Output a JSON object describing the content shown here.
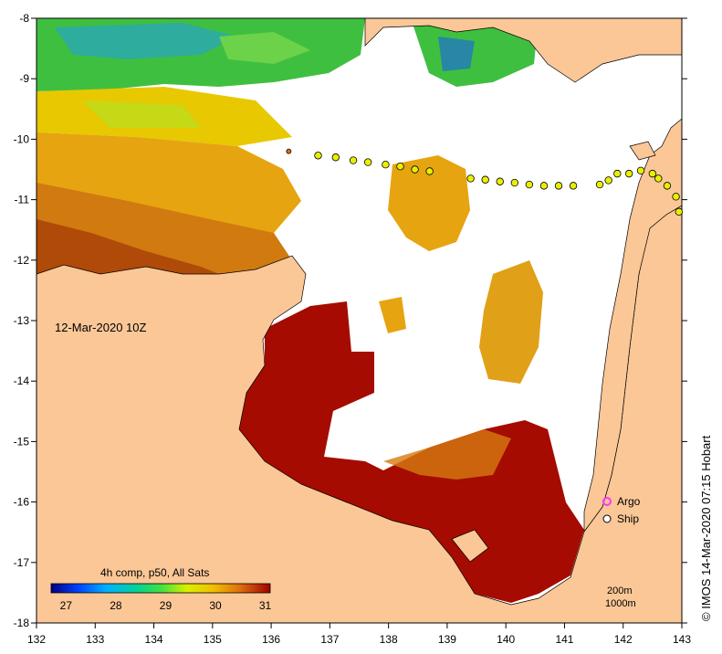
{
  "map": {
    "date_label": "12-Mar-2020 10Z",
    "credit": "© IMOS 14-Mar-2020 07:15 Hobart",
    "lon_ticks": [
      "132",
      "133",
      "134",
      "135",
      "136",
      "137",
      "138",
      "139",
      "140",
      "141",
      "142",
      "143"
    ],
    "lat_ticks": [
      "-8",
      "-9",
      "-10",
      "-11",
      "-12",
      "-13",
      "-14",
      "-15",
      "-16",
      "-17",
      "-18"
    ],
    "lon_range": [
      132,
      143
    ],
    "lat_range": [
      -18,
      -8
    ],
    "colorbar": {
      "title": "4h comp, p50, All Sats",
      "ticks": [
        "27",
        "28",
        "29",
        "30",
        "31"
      ],
      "range": [
        26.7,
        31.1
      ]
    },
    "legend": {
      "argo_label": "Argo",
      "ship_label": "Ship"
    },
    "depth_labels": [
      "200m",
      "1000m"
    ],
    "ship_track": [
      [
        136.3,
        -10.2
      ],
      [
        136.8,
        -10.27
      ],
      [
        137.1,
        -10.3
      ],
      [
        137.4,
        -10.35
      ],
      [
        137.65,
        -10.38
      ],
      [
        137.95,
        -10.42
      ],
      [
        138.2,
        -10.45
      ],
      [
        138.45,
        -10.5
      ],
      [
        138.7,
        -10.53
      ],
      [
        139.4,
        -10.65
      ],
      [
        139.65,
        -10.67
      ],
      [
        139.9,
        -10.7
      ],
      [
        140.15,
        -10.72
      ],
      [
        140.4,
        -10.75
      ],
      [
        140.65,
        -10.77
      ],
      [
        140.9,
        -10.77
      ],
      [
        141.15,
        -10.77
      ],
      [
        141.6,
        -10.75
      ],
      [
        141.75,
        -10.68
      ],
      [
        141.9,
        -10.57
      ],
      [
        142.1,
        -10.57
      ],
      [
        142.3,
        -10.52
      ],
      [
        142.5,
        -10.57
      ],
      [
        142.6,
        -10.65
      ],
      [
        142.75,
        -10.77
      ],
      [
        142.9,
        -10.95
      ],
      [
        142.95,
        -11.2
      ]
    ],
    "colors": {
      "land": "#fbc797",
      "cloud": "#ffffff",
      "warm_sst": "#a50b00",
      "argo": "#ff33ff",
      "ship_fill": "#e8f000"
    }
  }
}
